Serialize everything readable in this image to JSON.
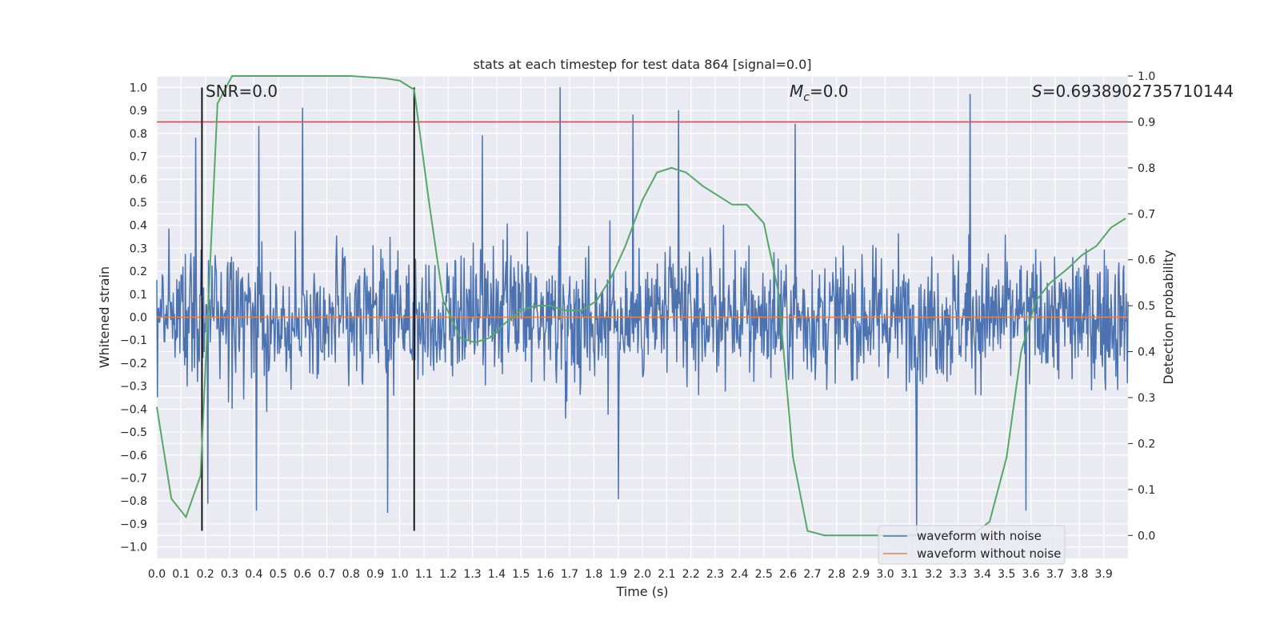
{
  "chart_data": {
    "type": "line",
    "title": "stats at each timestep for test data 864 [signal=0.0]",
    "xlabel": "Time (s)",
    "ylabel": "Whitened strain",
    "y2label": "Detection probability",
    "xlim": [
      0.0,
      4.0
    ],
    "ylim": [
      -1.05,
      1.05
    ],
    "y2lim": [
      -0.05,
      1.0
    ],
    "xticks": [
      "0.0",
      "0.1",
      "0.2",
      "0.3",
      "0.4",
      "0.5",
      "0.6",
      "0.7",
      "0.8",
      "0.9",
      "1.0",
      "1.1",
      "1.2",
      "1.3",
      "1.4",
      "1.5",
      "1.6",
      "1.7",
      "1.8",
      "1.9",
      "2.0",
      "2.1",
      "2.2",
      "2.3",
      "2.4",
      "2.5",
      "2.6",
      "2.7",
      "2.8",
      "2.9",
      "3.0",
      "3.1",
      "3.2",
      "3.3",
      "3.4",
      "3.5",
      "3.6",
      "3.7",
      "3.8",
      "3.9"
    ],
    "yticks": [
      "1.0",
      "0.9",
      "0.8",
      "0.7",
      "0.6",
      "0.5",
      "0.4",
      "0.3",
      "0.2",
      "0.1",
      "0.0",
      "−0.1",
      "−0.2",
      "−0.3",
      "−0.4",
      "−0.5",
      "−0.6",
      "−0.7",
      "−0.8",
      "−0.9",
      "−1.0"
    ],
    "y2ticks": [
      "1.0",
      "0.9",
      "0.8",
      "0.7",
      "0.6",
      "0.5",
      "0.4",
      "0.3",
      "0.2",
      "0.1",
      "0.0"
    ],
    "annotations": {
      "snr": "SNR=0.0",
      "mc_symbol": "M",
      "mc_sub": "c",
      "mc_value": "=0.0",
      "s_symbol": "S",
      "s_value": "=0.6938902735710144"
    },
    "legend": {
      "placement": "lower-right",
      "entries": [
        {
          "label": "waveform with noise",
          "color": "#4c72b0"
        },
        {
          "label": "waveform without noise",
          "color": "#dd8452"
        }
      ]
    },
    "threshold_prob": 0.9,
    "vertical_lines_x": [
      0.186,
      1.06
    ],
    "vertical_lines_yrange": [
      -0.93,
      1.0
    ],
    "noise_series": {
      "name": "waveform with noise",
      "color": "#4c72b0",
      "peaks": [
        {
          "t": 0.16,
          "v": 0.78
        },
        {
          "t": 0.42,
          "v": 0.83
        },
        {
          "t": 0.6,
          "v": 0.91
        },
        {
          "t": 1.34,
          "v": 0.79
        },
        {
          "t": 1.66,
          "v": 1.0
        },
        {
          "t": 1.96,
          "v": 0.88
        },
        {
          "t": 2.15,
          "v": 0.9
        },
        {
          "t": 2.63,
          "v": 0.84
        },
        {
          "t": 3.35,
          "v": 0.97
        },
        {
          "t": 0.41,
          "v": -0.84
        },
        {
          "t": 0.95,
          "v": -0.85
        },
        {
          "t": 1.9,
          "v": -0.79
        },
        {
          "t": 3.13,
          "v": -0.93
        },
        {
          "t": 3.58,
          "v": -0.84
        },
        {
          "t": 0.21,
          "v": -0.81
        }
      ]
    },
    "clean_series": {
      "name": "waveform without noise",
      "color": "#dd8452",
      "x": [
        0.0,
        4.0
      ],
      "y": [
        0.0,
        0.0
      ]
    },
    "probability_series": {
      "color": "#55a868",
      "x": [
        0.0,
        0.06,
        0.12,
        0.18,
        0.25,
        0.31,
        0.5,
        0.8,
        0.94,
        1.0,
        1.06,
        1.12,
        1.18,
        1.25,
        1.31,
        1.37,
        1.43,
        1.5,
        1.56,
        1.62,
        1.68,
        1.75,
        1.81,
        1.87,
        1.93,
        2.0,
        2.06,
        2.12,
        2.18,
        2.25,
        2.31,
        2.37,
        2.43,
        2.5,
        2.56,
        2.62,
        2.68,
        2.75,
        2.81,
        3.0,
        3.31,
        3.37,
        3.43,
        3.5,
        3.56,
        3.62,
        3.68,
        3.75,
        3.81,
        3.87,
        3.93,
        3.99
      ],
      "y": [
        0.28,
        0.08,
        0.04,
        0.13,
        0.94,
        1.0,
        1.0,
        1.0,
        0.995,
        0.99,
        0.97,
        0.73,
        0.51,
        0.43,
        0.42,
        0.43,
        0.46,
        0.49,
        0.5,
        0.5,
        0.49,
        0.49,
        0.51,
        0.56,
        0.63,
        0.73,
        0.79,
        0.8,
        0.79,
        0.76,
        0.74,
        0.72,
        0.72,
        0.68,
        0.53,
        0.17,
        0.01,
        0.0,
        0.0,
        0.0,
        0.0,
        0.005,
        0.03,
        0.17,
        0.4,
        0.51,
        0.55,
        0.58,
        0.61,
        0.63,
        0.67,
        0.69
      ]
    }
  }
}
